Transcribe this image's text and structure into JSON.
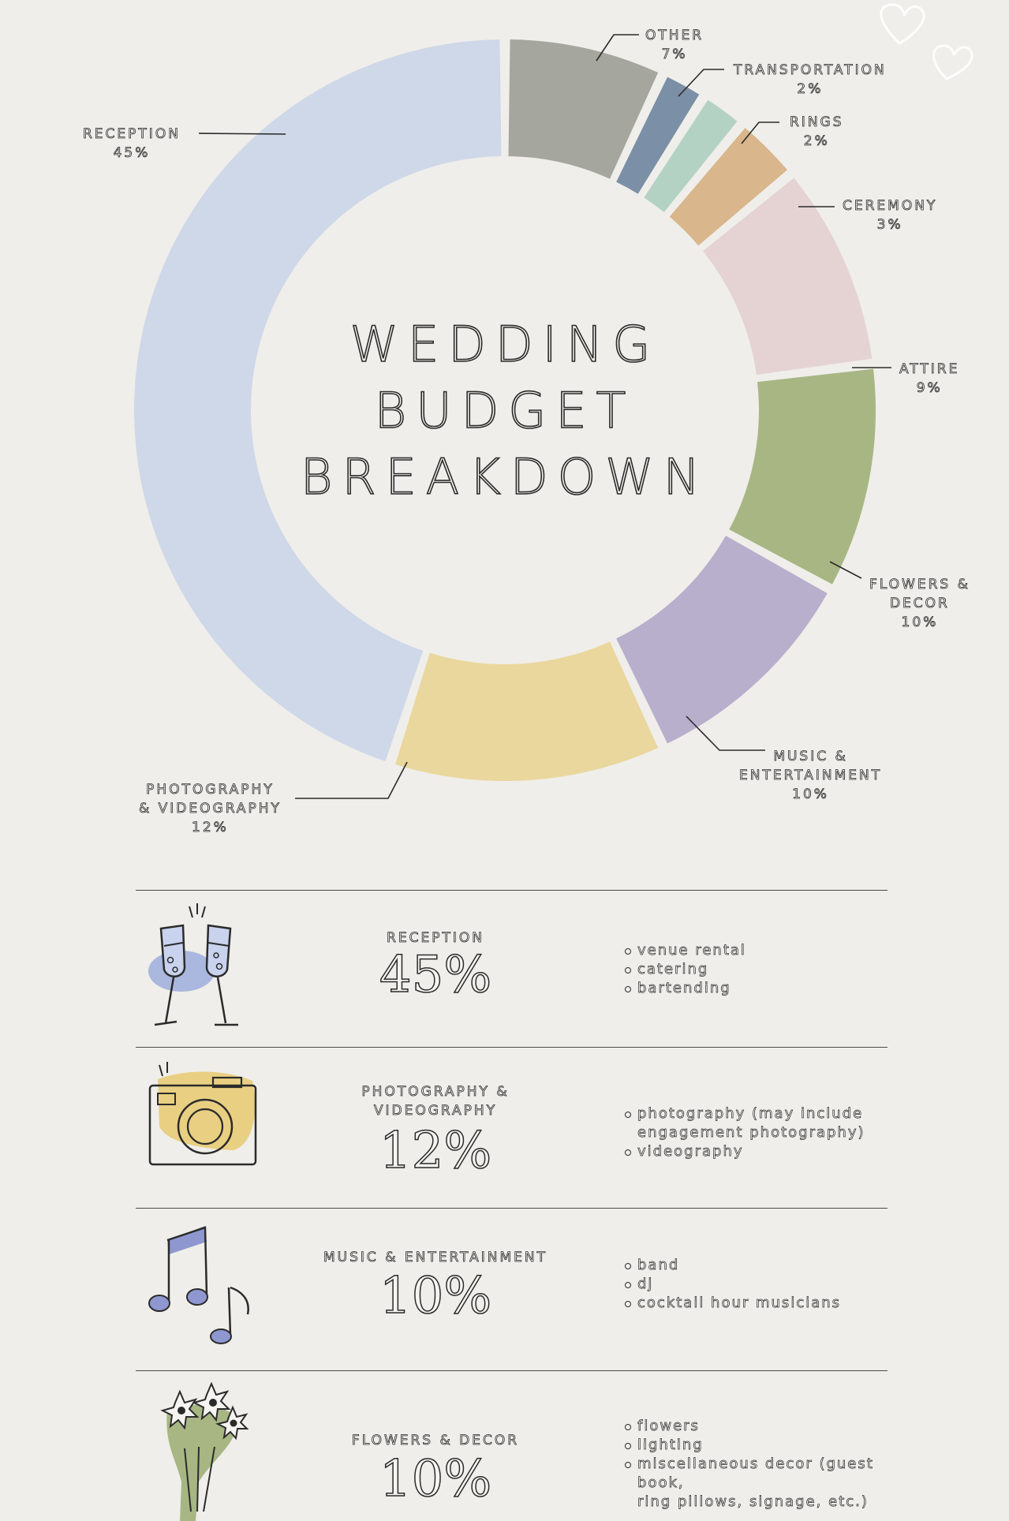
{
  "title": "WEDDING BUDGET BREAKDOWN",
  "title_lines": [
    "WEDDING",
    "BUDGET",
    "BREAKDOWN"
  ],
  "chart_data": {
    "type": "pie",
    "variant": "donut",
    "title": "WEDDING BUDGET BREAKDOWN",
    "slices": [
      {
        "label": "RECEPTION",
        "value": 45,
        "pct_label": "45%",
        "color": "#cfd8e8"
      },
      {
        "label": "PHOTOGRAPHY & VIDEOGRAPHY",
        "value": 12,
        "pct_label": "12%",
        "color": "#ead79d"
      },
      {
        "label": "MUSIC & ENTERTAINMENT",
        "value": 10,
        "pct_label": "10%",
        "color": "#b7afcc"
      },
      {
        "label": "FLOWERS & DECOR",
        "value": 10,
        "pct_label": "10%",
        "color": "#a8b683"
      },
      {
        "label": "ATTIRE",
        "value": 9,
        "pct_label": "9%",
        "color": "#e5d3d4"
      },
      {
        "label": "CEREMONY",
        "value": 3,
        "pct_label": "3%",
        "color": "#d9b68c"
      },
      {
        "label": "RINGS",
        "value": 2,
        "pct_label": "2%",
        "color": "#b3d2c4"
      },
      {
        "label": "TRANSPORTATION",
        "value": 2,
        "pct_label": "2%",
        "color": "#7b90a6"
      },
      {
        "label": "OTHER",
        "value": 7,
        "pct_label": "7%",
        "color": "#a5a69d"
      }
    ]
  },
  "labels": {
    "reception": {
      "name": "RECEPTION",
      "pct": "45%"
    },
    "photo": {
      "name1": "PHOTOGRAPHY",
      "name2": "& VIDEOGRAPHY",
      "pct": "12%"
    },
    "music": {
      "name1": "MUSIC &",
      "name2": "ENTERTAINMENT",
      "pct": "10%"
    },
    "flowers": {
      "name1": "FLOWERS &",
      "name2": "DECOR",
      "pct": "10%"
    },
    "attire": {
      "name": "ATTIRE",
      "pct": "9%"
    },
    "ceremony": {
      "name": "CEREMONY",
      "pct": "3%"
    },
    "rings": {
      "name": "RINGS",
      "pct": "2%"
    },
    "transport": {
      "name": "TRANSPORTATION",
      "pct": "2%"
    },
    "other": {
      "name": "OTHER",
      "pct": "7%"
    }
  },
  "details": [
    {
      "icon": "champagne-glasses-icon",
      "category": "RECEPTION",
      "percent": "45%",
      "items": [
        "venue rental",
        "catering",
        "bartending"
      ]
    },
    {
      "icon": "camera-icon",
      "category_lines": [
        "PHOTOGRAPHY &",
        "VIDEOGRAPHY"
      ],
      "percent": "12%",
      "items": [
        "photography (may include",
        "engagement photography)",
        "videography"
      ]
    },
    {
      "icon": "music-notes-icon",
      "category": "MUSIC & ENTERTAINMENT",
      "percent": "10%",
      "items": [
        "band",
        "dj",
        "cocktail hour musicians"
      ]
    },
    {
      "icon": "bouquet-icon",
      "category": "FLOWERS & DECOR",
      "percent": "10%",
      "items": [
        "flowers",
        "lighting",
        "miscellaneous decor (guest book,",
        "ring pillows, signage, etc.)"
      ]
    }
  ]
}
